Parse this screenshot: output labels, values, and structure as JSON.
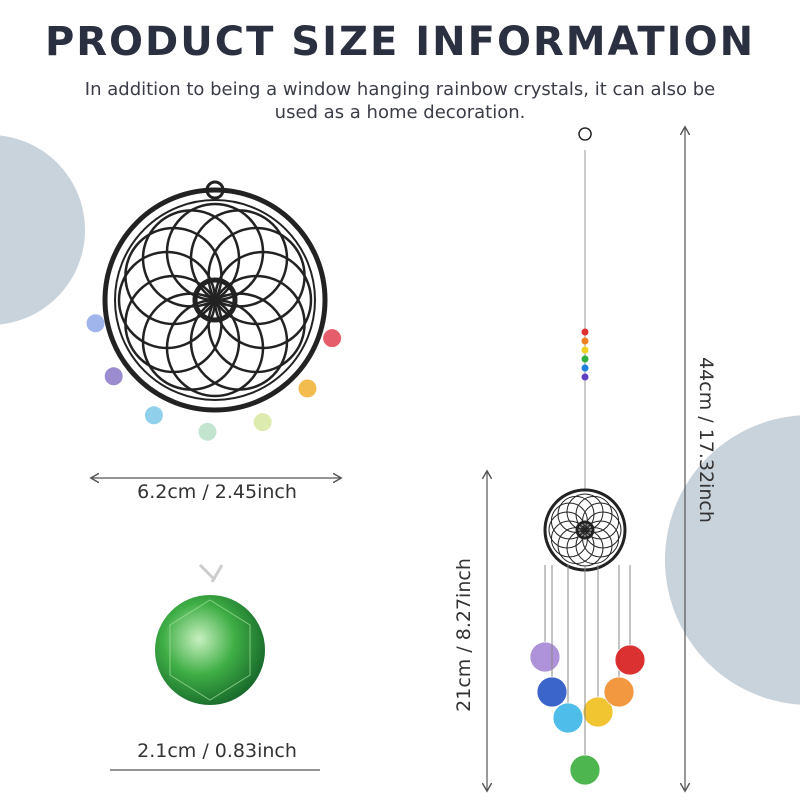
{
  "header": {
    "title": "PRODUCT SIZE INFORMATION",
    "subtitle_lines": [
      "In addition to being a window hanging rainbow crystals, it can also be",
      "used as a home decoration."
    ]
  },
  "dimensions": {
    "dreamcatcher_width": "6.2cm / 2.45inch",
    "crystal_width": "2.1cm / 0.83inch",
    "total_length": "44cm / 17.32inch",
    "pendant_length": "21cm / 8.27inch"
  }
}
